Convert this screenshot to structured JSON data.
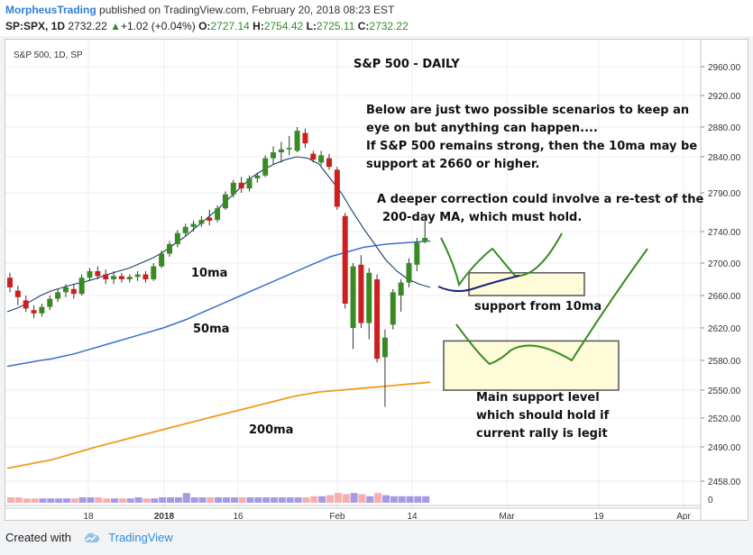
{
  "header": {
    "author": "MorpheusTrading",
    "published_text": "published on TradingView.com, February 20, 2018 08:23 EST",
    "symbol": "SP:SPX, 1D",
    "last": "2732.22",
    "change_arrow": "▲",
    "change": "+1.02 (+0.04%)",
    "open_label": "O:",
    "open": "2727.14",
    "high_label": "H:",
    "high": "2754.42",
    "low_label": "L:",
    "low": "2725.11",
    "close_label": "C:",
    "close": "2732.22"
  },
  "footer": {
    "created_with": "Created with",
    "brand": "TradingView"
  },
  "chart_data": {
    "type": "candlestick",
    "legend": "S&P 500, 1D, SP",
    "title": "S&P 500 - DAILY",
    "y_ticks": [
      2960,
      2920,
      2880,
      2840,
      2790,
      2740,
      2700,
      2660,
      2620,
      2580,
      2550,
      2520,
      2490,
      2458
    ],
    "y_tick_labels": [
      "2960.00",
      "2920.00",
      "2880.00",
      "2840.00",
      "2790.00",
      "2740.00",
      "2700.00",
      "2660.00",
      "2620.00",
      "2580.00",
      "2550.00",
      "2520.00",
      "2490.00",
      "2458.00"
    ],
    "x_tick_labels": [
      "18",
      "2018",
      "16",
      "Feb",
      "14",
      "Mar",
      "19",
      "Apr"
    ],
    "volume_axis_label": "0",
    "colors": {
      "up": "#3a8a24",
      "down": "#cc1f1f",
      "ma10": "#1a3d6e",
      "ma50": "#3d6fc9",
      "ma200": "#f29a1b",
      "scenario": "#3a8a24",
      "projection": "#1a237e",
      "box_fill": "#fdfbd8"
    },
    "candles": [
      {
        "o": 2682,
        "h": 2688,
        "l": 2664,
        "c": 2670
      },
      {
        "o": 2666,
        "h": 2672,
        "l": 2648,
        "c": 2658
      },
      {
        "o": 2654,
        "h": 2660,
        "l": 2640,
        "c": 2644
      },
      {
        "o": 2642,
        "h": 2648,
        "l": 2632,
        "c": 2638
      },
      {
        "o": 2638,
        "h": 2650,
        "l": 2634,
        "c": 2646
      },
      {
        "o": 2646,
        "h": 2660,
        "l": 2642,
        "c": 2656
      },
      {
        "o": 2656,
        "h": 2668,
        "l": 2652,
        "c": 2664
      },
      {
        "o": 2664,
        "h": 2674,
        "l": 2658,
        "c": 2670
      },
      {
        "o": 2668,
        "h": 2674,
        "l": 2656,
        "c": 2662
      },
      {
        "o": 2662,
        "h": 2686,
        "l": 2660,
        "c": 2682
      },
      {
        "o": 2682,
        "h": 2694,
        "l": 2678,
        "c": 2690
      },
      {
        "o": 2690,
        "h": 2696,
        "l": 2680,
        "c": 2684
      },
      {
        "o": 2686,
        "h": 2692,
        "l": 2674,
        "c": 2680
      },
      {
        "o": 2680,
        "h": 2690,
        "l": 2674,
        "c": 2684
      },
      {
        "o": 2684,
        "h": 2688,
        "l": 2676,
        "c": 2680
      },
      {
        "o": 2680,
        "h": 2686,
        "l": 2676,
        "c": 2683
      },
      {
        "o": 2683,
        "h": 2690,
        "l": 2678,
        "c": 2686
      },
      {
        "o": 2686,
        "h": 2690,
        "l": 2676,
        "c": 2680
      },
      {
        "o": 2680,
        "h": 2700,
        "l": 2678,
        "c": 2696
      },
      {
        "o": 2696,
        "h": 2716,
        "l": 2694,
        "c": 2712
      },
      {
        "o": 2712,
        "h": 2728,
        "l": 2708,
        "c": 2724
      },
      {
        "o": 2724,
        "h": 2742,
        "l": 2720,
        "c": 2738
      },
      {
        "o": 2738,
        "h": 2750,
        "l": 2734,
        "c": 2746
      },
      {
        "o": 2746,
        "h": 2754,
        "l": 2740,
        "c": 2750
      },
      {
        "o": 2750,
        "h": 2760,
        "l": 2746,
        "c": 2755
      },
      {
        "o": 2758,
        "h": 2768,
        "l": 2748,
        "c": 2754
      },
      {
        "o": 2755,
        "h": 2774,
        "l": 2752,
        "c": 2770
      },
      {
        "o": 2770,
        "h": 2792,
        "l": 2768,
        "c": 2788
      },
      {
        "o": 2788,
        "h": 2808,
        "l": 2784,
        "c": 2804
      },
      {
        "o": 2804,
        "h": 2812,
        "l": 2790,
        "c": 2796
      },
      {
        "o": 2796,
        "h": 2814,
        "l": 2792,
        "c": 2810
      },
      {
        "o": 2810,
        "h": 2818,
        "l": 2804,
        "c": 2814
      },
      {
        "o": 2814,
        "h": 2842,
        "l": 2812,
        "c": 2838
      },
      {
        "o": 2838,
        "h": 2854,
        "l": 2830,
        "c": 2846
      },
      {
        "o": 2846,
        "h": 2860,
        "l": 2832,
        "c": 2850
      },
      {
        "o": 2850,
        "h": 2868,
        "l": 2842,
        "c": 2852
      },
      {
        "o": 2848,
        "h": 2880,
        "l": 2846,
        "c": 2875
      },
      {
        "o": 2872,
        "h": 2878,
        "l": 2852,
        "c": 2858
      },
      {
        "o": 2844,
        "h": 2848,
        "l": 2832,
        "c": 2836
      },
      {
        "o": 2832,
        "h": 2848,
        "l": 2828,
        "c": 2842
      },
      {
        "o": 2838,
        "h": 2844,
        "l": 2822,
        "c": 2826
      },
      {
        "o": 2822,
        "h": 2826,
        "l": 2768,
        "c": 2772
      },
      {
        "o": 2760,
        "h": 2764,
        "l": 2644,
        "c": 2650
      },
      {
        "o": 2620,
        "h": 2700,
        "l": 2594,
        "c": 2696
      },
      {
        "o": 2698,
        "h": 2710,
        "l": 2620,
        "c": 2626
      },
      {
        "o": 2626,
        "h": 2694,
        "l": 2606,
        "c": 2688
      },
      {
        "o": 2680,
        "h": 2686,
        "l": 2578,
        "c": 2582
      },
      {
        "o": 2584,
        "h": 2618,
        "l": 2532,
        "c": 2608
      },
      {
        "o": 2624,
        "h": 2668,
        "l": 2618,
        "c": 2664
      },
      {
        "o": 2660,
        "h": 2680,
        "l": 2640,
        "c": 2676
      },
      {
        "o": 2676,
        "h": 2706,
        "l": 2670,
        "c": 2700
      },
      {
        "o": 2698,
        "h": 2732,
        "l": 2690,
        "c": 2726
      },
      {
        "o": 2727,
        "h": 2754,
        "l": 2725,
        "c": 2732
      }
    ],
    "volume_colors": [
      "d",
      "d",
      "d",
      "d",
      "u",
      "u",
      "u",
      "u",
      "d",
      "u",
      "u",
      "d",
      "d",
      "u",
      "d",
      "u",
      "u",
      "d",
      "u",
      "u",
      "u",
      "u",
      "u",
      "u",
      "u",
      "d",
      "u",
      "u",
      "u",
      "d",
      "u",
      "u",
      "u",
      "u",
      "u",
      "u",
      "u",
      "d",
      "d",
      "u",
      "d",
      "d",
      "d",
      "u",
      "d",
      "u",
      "d",
      "u",
      "u",
      "u",
      "u",
      "u",
      "u"
    ],
    "volume_values": [
      5,
      5,
      4,
      4,
      4,
      4,
      4,
      4,
      4,
      5,
      5,
      5,
      4,
      4,
      4,
      4,
      5,
      4,
      4,
      5,
      5,
      5,
      9,
      5,
      5,
      5,
      5,
      5,
      5,
      5,
      5,
      5,
      5,
      5,
      5,
      5,
      5,
      5,
      6,
      6,
      7,
      9,
      8,
      9,
      8,
      6,
      9,
      7,
      6,
      6,
      6,
      6,
      6
    ],
    "ma10": [
      2640,
      2645,
      2652,
      2660,
      2666,
      2670,
      2674,
      2677,
      2681,
      2686,
      2690,
      2694,
      2700,
      2706,
      2714,
      2724,
      2734,
      2746,
      2758,
      2770,
      2784,
      2798,
      2812,
      2822,
      2830,
      2836,
      2840,
      2838,
      2830,
      2810,
      2790,
      2766,
      2744,
      2724,
      2704,
      2690,
      2680,
      2674,
      2670
    ],
    "ma50": [
      2574,
      2576,
      2578,
      2580,
      2582,
      2585,
      2588,
      2592,
      2596,
      2600,
      2604,
      2608,
      2612,
      2616,
      2620,
      2625,
      2630,
      2636,
      2642,
      2648,
      2654,
      2660,
      2666,
      2672,
      2678,
      2684,
      2690,
      2696,
      2702,
      2708,
      2712,
      2716,
      2720,
      2722,
      2724,
      2725,
      2726,
      2727,
      2728
    ],
    "ma200": [
      2470,
      2472,
      2474,
      2476,
      2478,
      2481,
      2484,
      2487,
      2490,
      2493,
      2496,
      2499,
      2502,
      2505,
      2508,
      2511,
      2514,
      2517,
      2520,
      2523,
      2526,
      2529,
      2532,
      2535,
      2538,
      2541,
      2544,
      2546,
      2548,
      2549,
      2550,
      2551,
      2552,
      2553,
      2554,
      2555,
      2556,
      2557,
      2558
    ],
    "annotations": [
      "Below are just two possible scenarios to keep  an",
      "eye on but anything can happen....",
      "If S&P 500 remains strong, then the 10ma may be",
      "support at  2660 or higher.",
      "A deeper correction could involve a re-test of the",
      "200-day MA, which must hold."
    ],
    "ma_labels": {
      "ma10": "10ma",
      "ma50": "50ma",
      "ma200": "200ma"
    },
    "box_labels": {
      "upper": "support from 10ma",
      "lower": [
        "Main support level",
        "which should hold if",
        "current rally is legit"
      ]
    },
    "support_zones": [
      {
        "y0": 2660,
        "y1": 2688
      },
      {
        "y0": 2550,
        "y1": 2604
      }
    ]
  }
}
